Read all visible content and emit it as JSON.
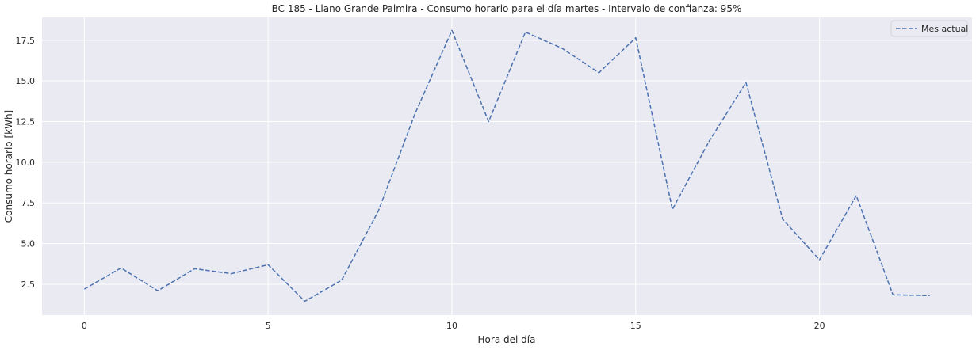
{
  "chart_data": {
    "type": "line",
    "title": "BC 185 - Llano Grande Palmira - Consumo horario para el día martes - Intervalo de confianza: 95%",
    "xlabel": "Hora del día",
    "ylabel": "Consumo horario [kWh]",
    "x": [
      0,
      1,
      2,
      3,
      4,
      5,
      6,
      7,
      8,
      9,
      10,
      11,
      12,
      13,
      14,
      15,
      16,
      17,
      18,
      19,
      20,
      21,
      22,
      23
    ],
    "xticks": [
      0,
      5,
      10,
      15,
      20
    ],
    "xtick_labels": [
      "0",
      "5",
      "10",
      "15",
      "20"
    ],
    "yticks": [
      2.5,
      5.0,
      7.5,
      10.0,
      12.5,
      15.0,
      17.5
    ],
    "ytick_labels": [
      "2.5",
      "5.0",
      "7.5",
      "10.0",
      "12.5",
      "15.0",
      "17.5"
    ],
    "xlim": [
      -1.15,
      24.15
    ],
    "ylim": [
      0.6,
      18.9
    ],
    "grid": true,
    "legend_position": "top-right",
    "series": [
      {
        "name": "Mes actual",
        "color": "#4c72b0",
        "linestyle": "dashed",
        "values": [
          2.2,
          3.5,
          2.1,
          3.45,
          3.15,
          3.7,
          1.45,
          2.75,
          7.0,
          13.0,
          18.1,
          12.5,
          18.0,
          17.0,
          15.5,
          17.65,
          7.1,
          11.3,
          14.9,
          6.5,
          4.0,
          7.95,
          1.85,
          1.8
        ]
      }
    ]
  }
}
